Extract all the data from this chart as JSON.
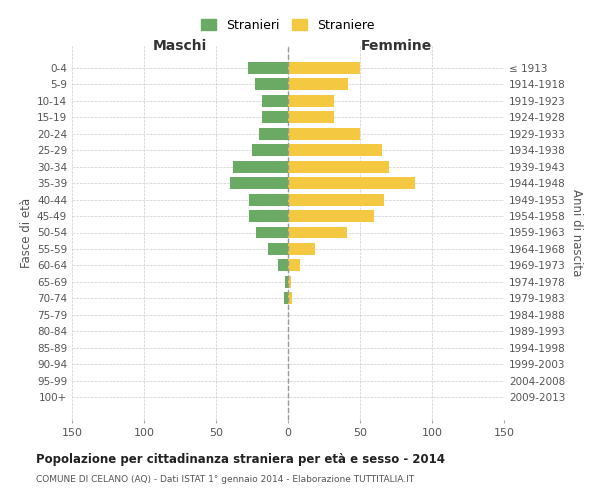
{
  "age_groups": [
    "0-4",
    "5-9",
    "10-14",
    "15-19",
    "20-24",
    "25-29",
    "30-34",
    "35-39",
    "40-44",
    "45-49",
    "50-54",
    "55-59",
    "60-64",
    "65-69",
    "70-74",
    "75-79",
    "80-84",
    "85-89",
    "90-94",
    "95-99",
    "100+"
  ],
  "birth_years": [
    "2009-2013",
    "2004-2008",
    "1999-2003",
    "1994-1998",
    "1989-1993",
    "1984-1988",
    "1979-1983",
    "1974-1978",
    "1969-1973",
    "1964-1968",
    "1959-1963",
    "1954-1958",
    "1949-1953",
    "1944-1948",
    "1939-1943",
    "1934-1938",
    "1929-1933",
    "1924-1928",
    "1919-1923",
    "1914-1918",
    "≤ 1913"
  ],
  "maschi": [
    28,
    23,
    18,
    18,
    20,
    25,
    38,
    40,
    27,
    27,
    22,
    14,
    7,
    2,
    3,
    0,
    0,
    0,
    0,
    0,
    0
  ],
  "femmine": [
    50,
    42,
    32,
    32,
    50,
    65,
    70,
    88,
    67,
    60,
    41,
    19,
    8,
    2,
    3,
    0,
    0,
    0,
    0,
    0,
    0
  ],
  "maschi_color": "#6aaa64",
  "femmine_color": "#f5c842",
  "background_color": "#ffffff",
  "grid_color": "#cccccc",
  "title": "Popolazione per cittadinanza straniera per età e sesso - 2014",
  "subtitle": "COMUNE DI CELANO (AQ) - Dati ISTAT 1° gennaio 2014 - Elaborazione TUTTITALIA.IT",
  "xlabel_left": "Maschi",
  "xlabel_right": "Femmine",
  "ylabel_left": "Fasce di età",
  "ylabel_right": "Anni di nascita",
  "legend_maschi": "Stranieri",
  "legend_femmine": "Straniere",
  "xlim": 150
}
